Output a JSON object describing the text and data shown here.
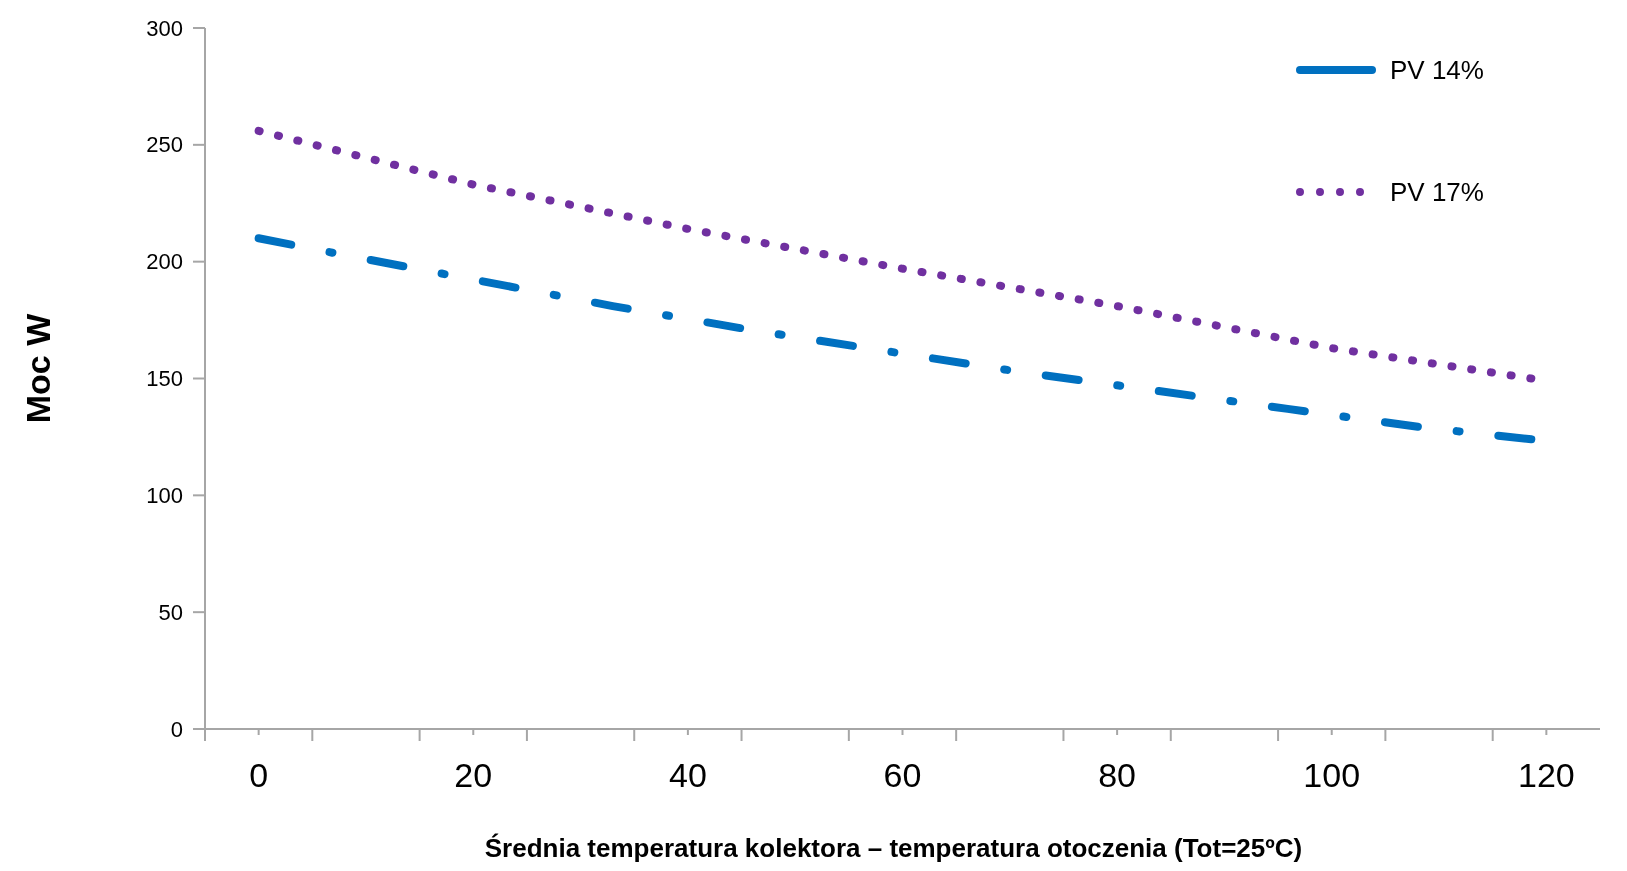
{
  "chart_data": {
    "type": "line",
    "xlabel": "Średnia temperatura kolektora  – temperatura otoczenia    (Tot=25ºC)",
    "ylabel": "Moc W",
    "xlim": [
      -5,
      125
    ],
    "xticks": [
      {
        "value": -5,
        "label": null
      },
      0,
      {
        "value": 5,
        "label": null
      },
      {
        "value": 15,
        "label": null
      },
      20,
      {
        "value": 25,
        "label": null
      },
      {
        "value": 35,
        "label": null
      },
      40,
      {
        "value": 45,
        "label": null
      },
      {
        "value": 55,
        "label": null
      },
      60,
      {
        "value": 65,
        "label": null
      },
      {
        "value": 75,
        "label": null
      },
      80,
      {
        "value": 85,
        "label": null
      },
      {
        "value": 95,
        "label": null
      },
      100,
      {
        "value": 105,
        "label": null
      },
      {
        "value": 115,
        "label": null
      },
      120
    ],
    "ylim": [
      0,
      300
    ],
    "yticks": [
      0,
      50,
      100,
      150,
      200,
      250,
      300
    ],
    "grid": false,
    "legend": "top right",
    "marker": "none",
    "series": [
      {
        "name": "PV 14%",
        "color": "#0070c0",
        "line_style": "dashed",
        "x": [
          0,
          7.8,
          20.4,
          33,
          45.6,
          58.1,
          70.7,
          83.3,
          95.9,
          108.6,
          118.6
        ],
        "values": [
          210,
          203,
          192,
          181,
          171,
          162,
          153,
          145,
          137,
          129,
          124
        ]
      },
      {
        "name": "PV 17%",
        "color": "#7030a0",
        "line_style": "dotted",
        "x": [
          0,
          20,
          40,
          60,
          80,
          100,
          118.6
        ],
        "values": [
          256,
          233,
          214,
          197,
          181,
          163,
          150
        ]
      }
    ]
  }
}
